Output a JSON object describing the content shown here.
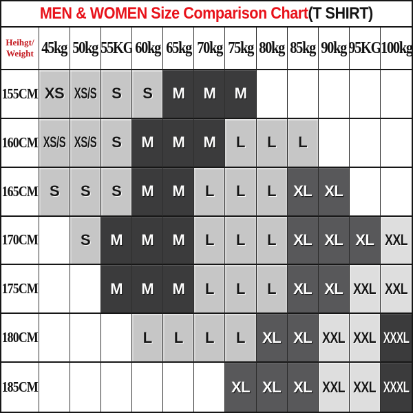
{
  "title": {
    "main": "MEN & WOMEN Size Comparison Chart",
    "suffix": "(T SHIRT)"
  },
  "header": {
    "corner_line1": "Heihgt/",
    "corner_line2": "Weight",
    "weights": [
      "45kg",
      "50kg",
      "55KG",
      "60kg",
      "65kg",
      "70kg",
      "75kg",
      "80kg",
      "85kg",
      "90kg",
      "95KG",
      "100kg"
    ]
  },
  "rows": [
    {
      "label": "155CM",
      "cells": [
        "XS",
        "XS/S",
        "S",
        "S",
        "M",
        "M",
        "M",
        "",
        "",
        "",
        "",
        ""
      ]
    },
    {
      "label": "160CM",
      "cells": [
        "XS/S",
        "XS/S",
        "S",
        "M",
        "M",
        "M",
        "L",
        "L",
        "L",
        "",
        "",
        ""
      ]
    },
    {
      "label": "165CM",
      "cells": [
        "S",
        "S",
        "S",
        "M",
        "M",
        "L",
        "L",
        "L",
        "XL",
        "XL",
        "",
        ""
      ]
    },
    {
      "label": "170CM",
      "cells": [
        "",
        "S",
        "M",
        "M",
        "M",
        "L",
        "L",
        "L",
        "XL",
        "XL",
        "XL",
        "XXL"
      ]
    },
    {
      "label": "175CM",
      "cells": [
        "",
        "",
        "M",
        "M",
        "M",
        "L",
        "L",
        "L",
        "XL",
        "XL",
        "XXL",
        "XXL"
      ]
    },
    {
      "label": "180CM",
      "cells": [
        "",
        "",
        "",
        "L",
        "L",
        "L",
        "L",
        "XL",
        "XL",
        "XXL",
        "XXL",
        "XXXL"
      ]
    },
    {
      "label": "185CM",
      "cells": [
        "",
        "",
        "",
        "",
        "",
        "",
        "XL",
        "XL",
        "XL",
        "XXL",
        "XXL",
        "XXXL"
      ]
    }
  ],
  "size_colors": {
    "XS": "#c6c6c6",
    "XS/S": "#c6c6c6",
    "S": "#c6c6c6",
    "M": "#3b3b3c",
    "L": "#c6c6c6",
    "XL": "#58585a",
    "XXL": "#dedede",
    "XXXL": "#3b3b3c"
  },
  "colors": {
    "title_red": "#e8121a",
    "corner_red": "#c3151c",
    "tile_light": "#c6c6c6",
    "tile_pale": "#dedede",
    "tile_mid": "#58585a",
    "tile_dark": "#3b3b3c",
    "grid_line": "#161616",
    "background": "#ffffff"
  },
  "chart_data": {
    "type": "table",
    "title": "MEN & WOMEN Size Comparison Chart(T SHIRT)",
    "xlabel": "Weight",
    "ylabel": "Height",
    "columns": [
      "45kg",
      "50kg",
      "55KG",
      "60kg",
      "65kg",
      "70kg",
      "75kg",
      "80kg",
      "85kg",
      "90kg",
      "95KG",
      "100kg"
    ],
    "row_labels": [
      "155CM",
      "160CM",
      "165CM",
      "170CM",
      "175CM",
      "180CM",
      "185CM"
    ],
    "values": [
      [
        "XS",
        "XS/S",
        "S",
        "S",
        "M",
        "M",
        "M",
        "",
        "",
        "",
        "",
        ""
      ],
      [
        "XS/S",
        "XS/S",
        "S",
        "M",
        "M",
        "M",
        "L",
        "L",
        "L",
        "",
        "",
        ""
      ],
      [
        "S",
        "S",
        "S",
        "M",
        "M",
        "L",
        "L",
        "L",
        "XL",
        "XL",
        "",
        ""
      ],
      [
        "",
        "S",
        "M",
        "M",
        "M",
        "L",
        "L",
        "L",
        "XL",
        "XL",
        "XL",
        "XXL"
      ],
      [
        "",
        "",
        "M",
        "M",
        "M",
        "L",
        "L",
        "L",
        "XL",
        "XL",
        "XXL",
        "XXL"
      ],
      [
        "",
        "",
        "",
        "L",
        "L",
        "L",
        "L",
        "XL",
        "XL",
        "XXL",
        "XXL",
        "XXXL"
      ],
      [
        "",
        "",
        "",
        "",
        "",
        "",
        "XL",
        "XL",
        "XL",
        "XXL",
        "XXL",
        "XXXL"
      ]
    ],
    "sizes_present": [
      "XS",
      "XS/S",
      "S",
      "M",
      "L",
      "XL",
      "XXL",
      "XXXL"
    ]
  }
}
